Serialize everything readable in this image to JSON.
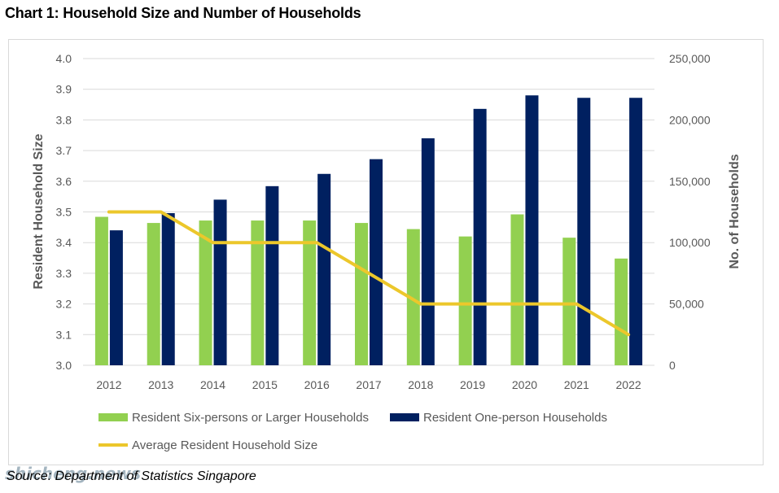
{
  "page": {
    "title": "Chart 1: Household Size and Number of Households",
    "source": "Source: Department of Statistics Singapore",
    "watermark": "shicheng.news"
  },
  "colors": {
    "green": "#92d050",
    "navy": "#002060",
    "gold": "#ecc72b",
    "grid": "#d9d9d9"
  },
  "chart_data": {
    "type": "bar",
    "title": "Chart 1: Household Size and Number of Households",
    "categories": [
      "2012",
      "2013",
      "2014",
      "2015",
      "2016",
      "2017",
      "2018",
      "2019",
      "2020",
      "2021",
      "2022"
    ],
    "ylabel_left": "Resident Household Size",
    "ylabel_right": "No. of Households",
    "ylim_left": [
      3.0,
      4.0
    ],
    "ylim_right": [
      0,
      250000
    ],
    "left_ticks": [
      "3.0",
      "3.1",
      "3.2",
      "3.3",
      "3.4",
      "3.5",
      "3.6",
      "3.7",
      "3.8",
      "3.9",
      "4.0"
    ],
    "right_ticks": [
      "0",
      "50,000",
      "100,000",
      "150,000",
      "200,000",
      "250,000"
    ],
    "grid": true,
    "legend_position": "bottom",
    "series": [
      {
        "name": "Resident Six-persons or Larger Households",
        "type": "bar",
        "axis": "right",
        "color": "#92d050",
        "values": [
          121000,
          116000,
          118000,
          118000,
          118000,
          116000,
          111000,
          105000,
          123000,
          104000,
          87000
        ]
      },
      {
        "name": "Resident One-person Households",
        "type": "bar",
        "axis": "right",
        "color": "#002060",
        "values": [
          110000,
          124000,
          135000,
          146000,
          156000,
          168000,
          185000,
          209000,
          220000,
          218000,
          218000
        ]
      },
      {
        "name": "Average Resident Household Size",
        "type": "line",
        "axis": "left",
        "color": "#ecc72b",
        "values": [
          3.5,
          3.5,
          3.4,
          3.4,
          3.4,
          3.3,
          3.2,
          3.2,
          3.2,
          3.2,
          3.1
        ]
      }
    ]
  }
}
